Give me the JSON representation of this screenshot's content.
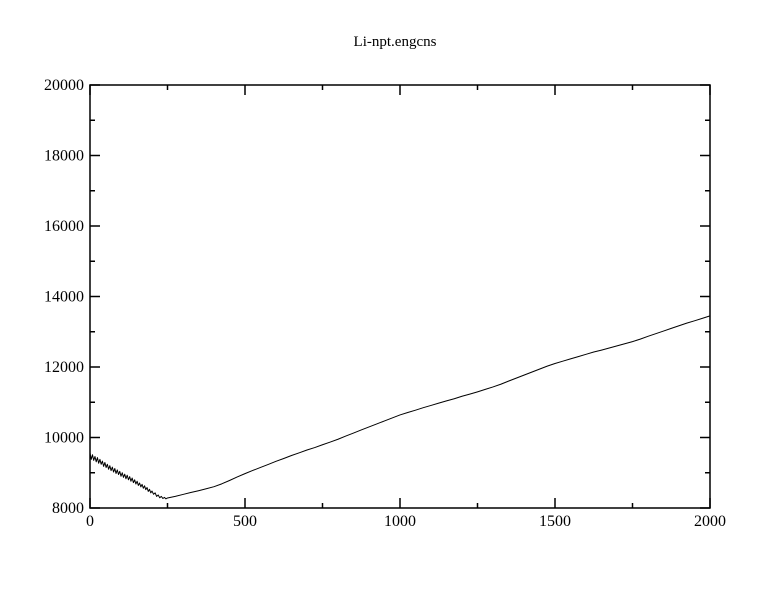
{
  "page": {
    "background_color": "#ffffff"
  },
  "chart_data": {
    "type": "line",
    "title": "Li-npt.engcns",
    "xlabel": "",
    "ylabel": "",
    "xlim": [
      0,
      2000
    ],
    "ylim": [
      8000,
      20000
    ],
    "grid": false,
    "legend": false,
    "frame_color": "#000000",
    "line_color": "#000000",
    "x_major_ticks": [
      0,
      500,
      1000,
      1500,
      2000
    ],
    "x_tick_labels": [
      "0",
      "500",
      "1000",
      "1500",
      "2000"
    ],
    "x_minor_step": 250,
    "y_major_ticks": [
      8000,
      10000,
      12000,
      14000,
      16000,
      18000,
      20000
    ],
    "y_tick_labels": [
      "8000",
      "10000",
      "12000",
      "14000",
      "16000",
      "18000",
      "20000"
    ],
    "y_minor_step": 1000,
    "series": [
      {
        "name": "Li-npt.engcns",
        "points": [
          [
            0,
            9560
          ],
          [
            4,
            9380
          ],
          [
            8,
            9510
          ],
          [
            12,
            9350
          ],
          [
            16,
            9460
          ],
          [
            20,
            9310
          ],
          [
            24,
            9430
          ],
          [
            28,
            9270
          ],
          [
            32,
            9380
          ],
          [
            36,
            9240
          ],
          [
            40,
            9330
          ],
          [
            44,
            9180
          ],
          [
            48,
            9290
          ],
          [
            52,
            9150
          ],
          [
            56,
            9240
          ],
          [
            60,
            9100
          ],
          [
            64,
            9200
          ],
          [
            68,
            9060
          ],
          [
            72,
            9160
          ],
          [
            76,
            9020
          ],
          [
            80,
            9120
          ],
          [
            84,
            8980
          ],
          [
            88,
            9080
          ],
          [
            92,
            8950
          ],
          [
            96,
            9040
          ],
          [
            100,
            8900
          ],
          [
            104,
            9000
          ],
          [
            108,
            8870
          ],
          [
            112,
            8960
          ],
          [
            116,
            8830
          ],
          [
            120,
            8930
          ],
          [
            124,
            8800
          ],
          [
            128,
            8890
          ],
          [
            132,
            8760
          ],
          [
            136,
            8850
          ],
          [
            140,
            8720
          ],
          [
            144,
            8800
          ],
          [
            148,
            8680
          ],
          [
            152,
            8760
          ],
          [
            156,
            8640
          ],
          [
            160,
            8710
          ],
          [
            164,
            8600
          ],
          [
            168,
            8670
          ],
          [
            172,
            8560
          ],
          [
            176,
            8630
          ],
          [
            180,
            8520
          ],
          [
            184,
            8580
          ],
          [
            188,
            8470
          ],
          [
            192,
            8530
          ],
          [
            196,
            8430
          ],
          [
            200,
            8480
          ],
          [
            205,
            8390
          ],
          [
            210,
            8430
          ],
          [
            215,
            8330
          ],
          [
            220,
            8370
          ],
          [
            225,
            8290
          ],
          [
            230,
            8330
          ],
          [
            235,
            8270
          ],
          [
            240,
            8300
          ],
          [
            245,
            8260
          ],
          [
            250,
            8285
          ],
          [
            275,
            8330
          ],
          [
            300,
            8385
          ],
          [
            325,
            8440
          ],
          [
            350,
            8490
          ],
          [
            375,
            8545
          ],
          [
            400,
            8605
          ],
          [
            425,
            8685
          ],
          [
            450,
            8780
          ],
          [
            475,
            8880
          ],
          [
            500,
            8975
          ],
          [
            525,
            9065
          ],
          [
            550,
            9150
          ],
          [
            575,
            9235
          ],
          [
            600,
            9325
          ],
          [
            625,
            9405
          ],
          [
            650,
            9490
          ],
          [
            675,
            9565
          ],
          [
            700,
            9645
          ],
          [
            725,
            9715
          ],
          [
            750,
            9795
          ],
          [
            775,
            9870
          ],
          [
            800,
            9950
          ],
          [
            825,
            10040
          ],
          [
            850,
            10125
          ],
          [
            875,
            10215
          ],
          [
            900,
            10300
          ],
          [
            925,
            10385
          ],
          [
            950,
            10470
          ],
          [
            975,
            10555
          ],
          [
            1000,
            10640
          ],
          [
            1025,
            10710
          ],
          [
            1050,
            10775
          ],
          [
            1075,
            10845
          ],
          [
            1100,
            10910
          ],
          [
            1125,
            10975
          ],
          [
            1150,
            11040
          ],
          [
            1175,
            11100
          ],
          [
            1200,
            11170
          ],
          [
            1225,
            11230
          ],
          [
            1250,
            11295
          ],
          [
            1275,
            11365
          ],
          [
            1300,
            11435
          ],
          [
            1325,
            11510
          ],
          [
            1350,
            11600
          ],
          [
            1375,
            11685
          ],
          [
            1400,
            11770
          ],
          [
            1425,
            11855
          ],
          [
            1450,
            11940
          ],
          [
            1475,
            12025
          ],
          [
            1500,
            12100
          ],
          [
            1525,
            12165
          ],
          [
            1550,
            12230
          ],
          [
            1575,
            12295
          ],
          [
            1600,
            12360
          ],
          [
            1625,
            12425
          ],
          [
            1650,
            12480
          ],
          [
            1675,
            12540
          ],
          [
            1700,
            12600
          ],
          [
            1725,
            12660
          ],
          [
            1750,
            12720
          ],
          [
            1775,
            12790
          ],
          [
            1800,
            12870
          ],
          [
            1825,
            12945
          ],
          [
            1850,
            13020
          ],
          [
            1875,
            13095
          ],
          [
            1900,
            13170
          ],
          [
            1925,
            13245
          ],
          [
            1950,
            13310
          ],
          [
            1975,
            13380
          ],
          [
            2000,
            13450
          ]
        ]
      }
    ]
  }
}
